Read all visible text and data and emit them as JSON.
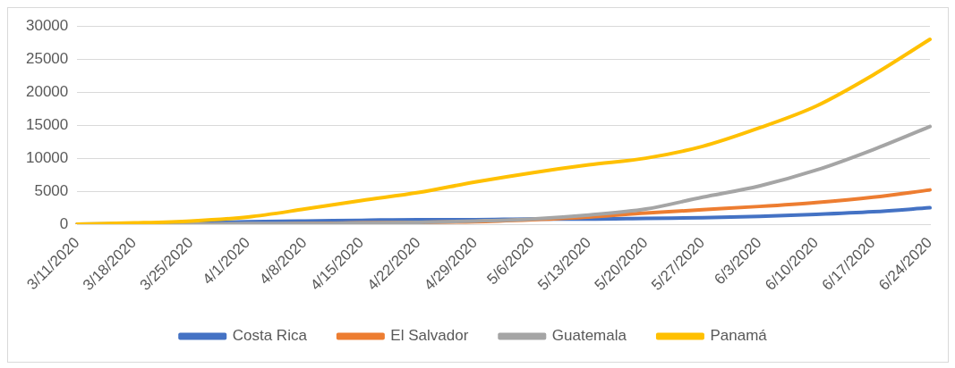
{
  "chart_data": {
    "type": "line",
    "categories": [
      "3/11/2020",
      "3/18/2020",
      "3/25/2020",
      "4/1/2020",
      "4/8/2020",
      "4/15/2020",
      "4/22/2020",
      "4/29/2020",
      "5/6/2020",
      "5/13/2020",
      "5/20/2020",
      "5/27/2020",
      "6/3/2020",
      "6/10/2020",
      "6/17/2020",
      "6/24/2020"
    ],
    "series": [
      {
        "name": "Costa Rica",
        "color": "#4472c4",
        "values": [
          0,
          100,
          200,
          400,
          500,
          600,
          700,
          700,
          800,
          800,
          900,
          1000,
          1200,
          1500,
          1900,
          2500
        ]
      },
      {
        "name": "El Salvador",
        "color": "#ed7d31",
        "values": [
          0,
          0,
          0,
          0,
          100,
          200,
          300,
          400,
          700,
          1100,
          1700,
          2200,
          2700,
          3300,
          4100,
          5200
        ]
      },
      {
        "name": "Guatemala",
        "color": "#a5a5a5",
        "values": [
          0,
          0,
          0,
          100,
          100,
          200,
          300,
          500,
          800,
          1400,
          2300,
          4100,
          5800,
          8200,
          11300,
          14800
        ]
      },
      {
        "name": "Panamá",
        "color": "#ffc000",
        "values": [
          0,
          200,
          500,
          1100,
          2300,
          3600,
          4800,
          6400,
          7800,
          9000,
          10000,
          11800,
          14600,
          17900,
          22600,
          28000
        ]
      }
    ],
    "ylim": [
      0,
      30000
    ],
    "yticks": [
      0,
      5000,
      10000,
      15000,
      20000,
      25000,
      30000
    ],
    "grid": "y",
    "legend": "bottom",
    "marker": "none",
    "line_style": "solid"
  }
}
